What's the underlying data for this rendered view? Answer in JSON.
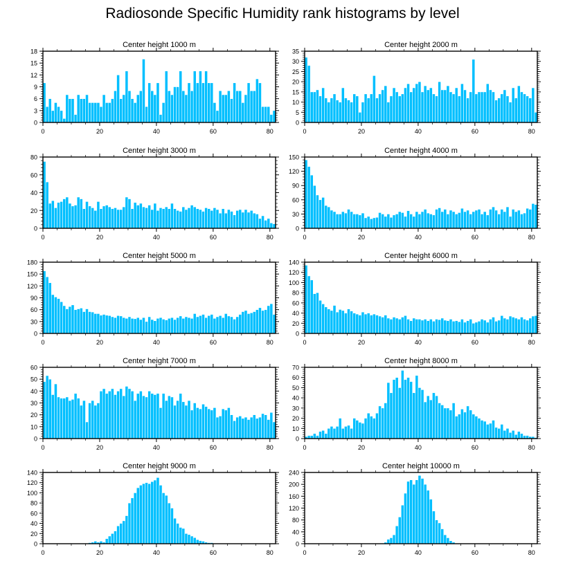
{
  "title": "Radiosonde Specific Humidity rank histograms by level",
  "colors": {
    "bar": "#00BFFF",
    "bar_edge": "#ffffff",
    "axis": "#000000"
  },
  "chart_data": [
    {
      "type": "bar",
      "title": "Center height 1000 m",
      "xlabel": "",
      "ylabel": "",
      "xlim": [
        0,
        82
      ],
      "ylim": [
        0,
        18
      ],
      "yticks": [
        0,
        3,
        6,
        9,
        12,
        15,
        18
      ],
      "xticks": [
        0,
        20,
        40,
        60,
        80
      ],
      "values": [
        10,
        4,
        6,
        3,
        5,
        4,
        3,
        1,
        7,
        6,
        6,
        2,
        7,
        6,
        6,
        7,
        5,
        5,
        5,
        5,
        4,
        7,
        5,
        5,
        6,
        8,
        12,
        6,
        7,
        13,
        8,
        6,
        5,
        7,
        8,
        16,
        4,
        10,
        8,
        7,
        10,
        2,
        5,
        13,
        8,
        7,
        9,
        9,
        13,
        8,
        7,
        10,
        8,
        13,
        10,
        13,
        10,
        13,
        10,
        10,
        5,
        3,
        8,
        7,
        7,
        8,
        6,
        10,
        8,
        8,
        5,
        7,
        10,
        8,
        8,
        11,
        10,
        4,
        4,
        4,
        2,
        3
      ]
    },
    {
      "type": "bar",
      "title": "Center height 2000 m",
      "xlabel": "",
      "ylabel": "",
      "xlim": [
        0,
        82
      ],
      "ylim": [
        0,
        35
      ],
      "yticks": [
        0,
        5,
        10,
        15,
        20,
        25,
        30,
        35
      ],
      "xticks": [
        0,
        20,
        40,
        60,
        80
      ],
      "values": [
        32,
        28,
        15,
        15,
        16,
        13,
        17,
        12,
        10,
        12,
        14,
        11,
        10,
        17,
        12,
        11,
        10,
        14,
        13,
        5,
        10,
        14,
        12,
        14,
        23,
        12,
        14,
        16,
        18,
        10,
        13,
        17,
        15,
        13,
        14,
        17,
        19,
        15,
        17,
        19,
        20,
        15,
        18,
        16,
        17,
        14,
        13,
        20,
        16,
        16,
        18,
        15,
        14,
        17,
        13,
        19,
        16,
        12,
        15,
        31,
        14,
        15,
        15,
        15,
        19,
        16,
        15,
        11,
        12,
        14,
        16,
        13,
        10,
        17,
        12,
        18,
        15,
        14,
        13,
        12,
        17,
        5
      ]
    },
    {
      "type": "bar",
      "title": "Center height 3000 m",
      "xlabel": "",
      "ylabel": "",
      "xlim": [
        0,
        82
      ],
      "ylim": [
        0,
        80
      ],
      "yticks": [
        0,
        20,
        40,
        60,
        80
      ],
      "xticks": [
        0,
        20,
        40,
        60,
        80
      ],
      "values": [
        75,
        52,
        28,
        31,
        23,
        29,
        30,
        33,
        35,
        28,
        25,
        26,
        35,
        33,
        22,
        30,
        25,
        23,
        20,
        30,
        22,
        25,
        26,
        24,
        22,
        23,
        21,
        21,
        24,
        35,
        33,
        22,
        29,
        26,
        28,
        24,
        23,
        26,
        21,
        28,
        20,
        23,
        22,
        24,
        22,
        28,
        22,
        20,
        19,
        24,
        21,
        23,
        26,
        24,
        22,
        21,
        19,
        23,
        22,
        20,
        23,
        21,
        17,
        22,
        17,
        21,
        19,
        15,
        20,
        21,
        18,
        21,
        18,
        20,
        17,
        16,
        11,
        14,
        9,
        11,
        6,
        5
      ]
    },
    {
      "type": "bar",
      "title": "Center height 4000 m",
      "xlabel": "",
      "ylabel": "",
      "xlim": [
        0,
        82
      ],
      "ylim": [
        0,
        150
      ],
      "yticks": [
        0,
        30,
        60,
        90,
        120,
        150
      ],
      "xticks": [
        0,
        20,
        40,
        60,
        80
      ],
      "values": [
        144,
        130,
        112,
        90,
        70,
        60,
        65,
        48,
        45,
        38,
        35,
        30,
        30,
        35,
        32,
        40,
        35,
        30,
        30,
        28,
        32,
        22,
        25,
        20,
        22,
        23,
        33,
        30,
        25,
        30,
        23,
        28,
        30,
        35,
        33,
        25,
        37,
        30,
        25,
        35,
        30,
        35,
        40,
        32,
        30,
        28,
        40,
        43,
        35,
        40,
        30,
        38,
        35,
        30,
        33,
        42,
        35,
        38,
        30,
        35,
        38,
        40,
        30,
        35,
        28,
        40,
        45,
        38,
        30,
        40,
        35,
        45,
        25,
        40,
        35,
        38,
        30,
        32,
        42,
        40,
        52,
        50
      ]
    },
    {
      "type": "bar",
      "title": "Center height 5000 m",
      "xlabel": "",
      "ylabel": "",
      "xlim": [
        0,
        82
      ],
      "ylim": [
        0,
        180
      ],
      "yticks": [
        0,
        30,
        60,
        90,
        120,
        150,
        180
      ],
      "xticks": [
        0,
        20,
        40,
        60,
        80
      ],
      "values": [
        158,
        143,
        128,
        98,
        92,
        88,
        80,
        70,
        62,
        68,
        72,
        60,
        62,
        64,
        55,
        62,
        55,
        54,
        50,
        50,
        46,
        48,
        46,
        45,
        42,
        40,
        45,
        44,
        40,
        38,
        42,
        38,
        37,
        40,
        35,
        40,
        30,
        42,
        35,
        32,
        38,
        40,
        36,
        34,
        38,
        40,
        35,
        40,
        44,
        38,
        42,
        40,
        38,
        50,
        42,
        45,
        48,
        40,
        45,
        48,
        38,
        42,
        45,
        40,
        50,
        44,
        42,
        36,
        42,
        48,
        55,
        58,
        50,
        52,
        55,
        60,
        65,
        58,
        60,
        70,
        75,
        48
      ]
    },
    {
      "type": "bar",
      "title": "Center height 6000 m",
      "xlabel": "",
      "ylabel": "",
      "xlim": [
        0,
        82
      ],
      "ylim": [
        0,
        140
      ],
      "yticks": [
        0,
        20,
        40,
        60,
        80,
        100,
        120,
        140
      ],
      "xticks": [
        0,
        20,
        40,
        60,
        80
      ],
      "values": [
        134,
        113,
        105,
        78,
        80,
        65,
        58,
        52,
        48,
        45,
        55,
        42,
        47,
        45,
        40,
        48,
        44,
        40,
        38,
        36,
        42,
        38,
        40,
        36,
        38,
        36,
        34,
        32,
        36,
        30,
        28,
        32,
        30,
        28,
        32,
        35,
        28,
        25,
        30,
        28,
        28,
        26,
        28,
        25,
        28,
        24,
        28,
        27,
        30,
        26,
        25,
        28,
        24,
        25,
        23,
        28,
        22,
        25,
        28,
        20,
        22,
        24,
        28,
        26,
        22,
        28,
        32,
        24,
        26,
        35,
        30,
        28,
        34,
        32,
        30,
        28,
        32,
        28,
        26,
        30,
        34,
        35
      ]
    },
    {
      "type": "bar",
      "title": "Center height 7000 m",
      "xlabel": "",
      "ylabel": "",
      "xlim": [
        0,
        82
      ],
      "ylim": [
        0,
        60
      ],
      "yticks": [
        0,
        10,
        20,
        30,
        40,
        50,
        60
      ],
      "xticks": [
        0,
        20,
        40,
        60,
        80
      ],
      "values": [
        48,
        53,
        50,
        37,
        46,
        35,
        34,
        34,
        35,
        32,
        33,
        38,
        34,
        28,
        32,
        14,
        30,
        32,
        28,
        30,
        40,
        42,
        38,
        40,
        42,
        37,
        40,
        42,
        36,
        44,
        42,
        40,
        32,
        38,
        40,
        36,
        35,
        40,
        38,
        37,
        38,
        26,
        38,
        32,
        36,
        35,
        28,
        32,
        38,
        31,
        28,
        32,
        24,
        30,
        26,
        25,
        29,
        27,
        25,
        24,
        26,
        18,
        19,
        25,
        24,
        26,
        20,
        15,
        18,
        19,
        17,
        18,
        16,
        18,
        20,
        17,
        18,
        21,
        20,
        16,
        22,
        14
      ]
    },
    {
      "type": "bar",
      "title": "Center height 8000 m",
      "xlabel": "",
      "ylabel": "",
      "xlim": [
        0,
        82
      ],
      "ylim": [
        0,
        70
      ],
      "yticks": [
        0,
        10,
        20,
        30,
        40,
        50,
        60,
        70
      ],
      "xticks": [
        0,
        20,
        40,
        60,
        80
      ],
      "values": [
        2,
        3,
        3,
        5,
        3,
        7,
        8,
        5,
        10,
        12,
        10,
        12,
        20,
        10,
        12,
        13,
        10,
        20,
        18,
        16,
        15,
        20,
        25,
        22,
        20,
        25,
        32,
        30,
        35,
        55,
        45,
        58,
        60,
        50,
        67,
        58,
        60,
        56,
        45,
        62,
        50,
        48,
        36,
        42,
        38,
        45,
        42,
        35,
        33,
        30,
        30,
        28,
        35,
        22,
        24,
        29,
        26,
        32,
        28,
        24,
        22,
        20,
        18,
        17,
        14,
        15,
        18,
        11,
        10,
        14,
        8,
        10,
        6,
        8,
        4,
        7,
        5,
        3,
        3,
        2,
        2,
        1
      ]
    },
    {
      "type": "bar",
      "title": "Center height 9000 m",
      "xlabel": "",
      "ylabel": "",
      "xlim": [
        0,
        82
      ],
      "ylim": [
        0,
        140
      ],
      "yticks": [
        0,
        20,
        40,
        60,
        80,
        100,
        120,
        140
      ],
      "xticks": [
        0,
        20,
        40,
        60,
        80
      ],
      "values": [
        0,
        0,
        0,
        0,
        0,
        0,
        0,
        0,
        0,
        0,
        1,
        0,
        0,
        1,
        1,
        1,
        2,
        3,
        5,
        3,
        5,
        3,
        10,
        15,
        20,
        25,
        35,
        40,
        45,
        55,
        80,
        90,
        100,
        110,
        115,
        118,
        120,
        118,
        122,
        125,
        130,
        115,
        100,
        95,
        80,
        70,
        50,
        40,
        32,
        30,
        20,
        18,
        15,
        12,
        8,
        6,
        5,
        3,
        2,
        2,
        1,
        1,
        1,
        1,
        0,
        0,
        0,
        0,
        0,
        0,
        0,
        0,
        0,
        0,
        0,
        0,
        0,
        0,
        0,
        0,
        0,
        0
      ]
    },
    {
      "type": "bar",
      "title": "Center height 10000 m",
      "xlabel": "",
      "ylabel": "",
      "xlim": [
        0,
        82
      ],
      "ylim": [
        0,
        240
      ],
      "yticks": [
        0,
        40,
        80,
        120,
        160,
        200,
        240
      ],
      "xticks": [
        0,
        20,
        40,
        60,
        80
      ],
      "values": [
        0,
        0,
        0,
        0,
        0,
        0,
        0,
        0,
        0,
        0,
        0,
        0,
        0,
        0,
        0,
        0,
        0,
        0,
        0,
        0,
        0,
        0,
        0,
        0,
        0,
        0,
        0,
        2,
        5,
        15,
        20,
        30,
        60,
        90,
        130,
        170,
        210,
        215,
        200,
        215,
        230,
        220,
        200,
        180,
        150,
        110,
        80,
        70,
        50,
        30,
        20,
        10,
        5,
        2,
        1,
        0,
        0,
        0,
        0,
        0,
        0,
        0,
        0,
        0,
        0,
        0,
        0,
        0,
        0,
        0,
        0,
        0,
        0,
        0,
        0,
        0,
        0,
        0,
        0,
        0,
        0,
        0
      ]
    }
  ]
}
